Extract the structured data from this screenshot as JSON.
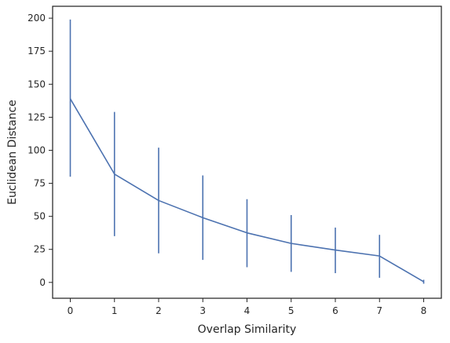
{
  "chart_data": {
    "type": "line",
    "title": "",
    "xlabel": "Overlap Similarity",
    "ylabel": "Euclidean Distance",
    "xlim": [
      -0.4,
      8.4
    ],
    "ylim": [
      -12,
      209
    ],
    "xticks": [
      0,
      1,
      2,
      3,
      4,
      5,
      6,
      7,
      8
    ],
    "yticks": [
      0,
      25,
      50,
      75,
      100,
      125,
      150,
      175,
      200
    ],
    "grid": false,
    "legend": "none",
    "series": [
      {
        "color": "#4c72b0",
        "x": [
          0,
          1,
          2,
          3,
          4,
          5,
          6,
          7,
          8
        ],
        "y": [
          139,
          82,
          62,
          49,
          37.5,
          29.5,
          24.5,
          20,
          0.5
        ],
        "err_low": [
          80,
          35,
          22,
          17,
          11.5,
          8,
          7,
          3.5,
          -1
        ],
        "err_high": [
          199,
          129,
          102,
          81,
          63,
          51,
          41.5,
          36,
          2
        ]
      }
    ]
  }
}
